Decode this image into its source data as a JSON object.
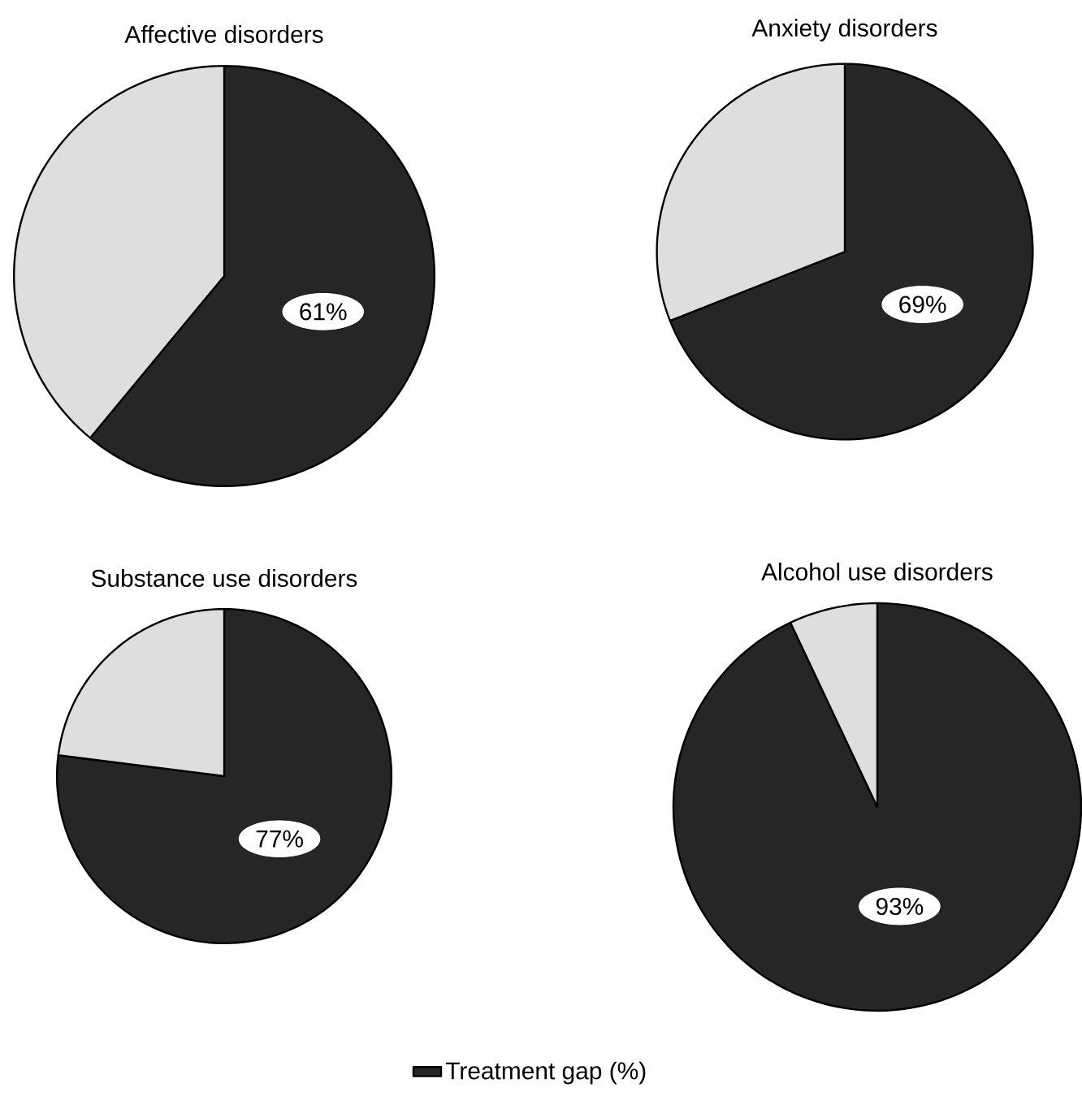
{
  "chart_data": [
    {
      "type": "pie",
      "title": "Affective disorders",
      "categories": [
        null,
        null
      ],
      "values": [
        61,
        39
      ],
      "colors": [
        "#262626",
        "#dedede"
      ],
      "value_labels": [
        "61%",
        null
      ]
    },
    {
      "type": "pie",
      "title": "Anxiety disorders",
      "categories": [
        null,
        null
      ],
      "values": [
        69,
        31
      ],
      "colors": [
        "#262626",
        "#dedede"
      ],
      "value_labels": [
        "69%",
        null
      ]
    },
    {
      "type": "pie",
      "title": "Substance use disorders",
      "categories": [
        null,
        null
      ],
      "values": [
        77,
        23
      ],
      "colors": [
        "#262626",
        "#dedede"
      ],
      "value_labels": [
        "77%",
        null
      ]
    },
    {
      "type": "pie",
      "title": "Alcohol use disorders",
      "categories": [
        "Treatment gap (%)",
        null
      ],
      "values": [
        93,
        7
      ],
      "colors": [
        "#262626",
        "#dedede"
      ],
      "value_labels": [
        "93%",
        null
      ],
      "legend": "bottom"
    }
  ]
}
